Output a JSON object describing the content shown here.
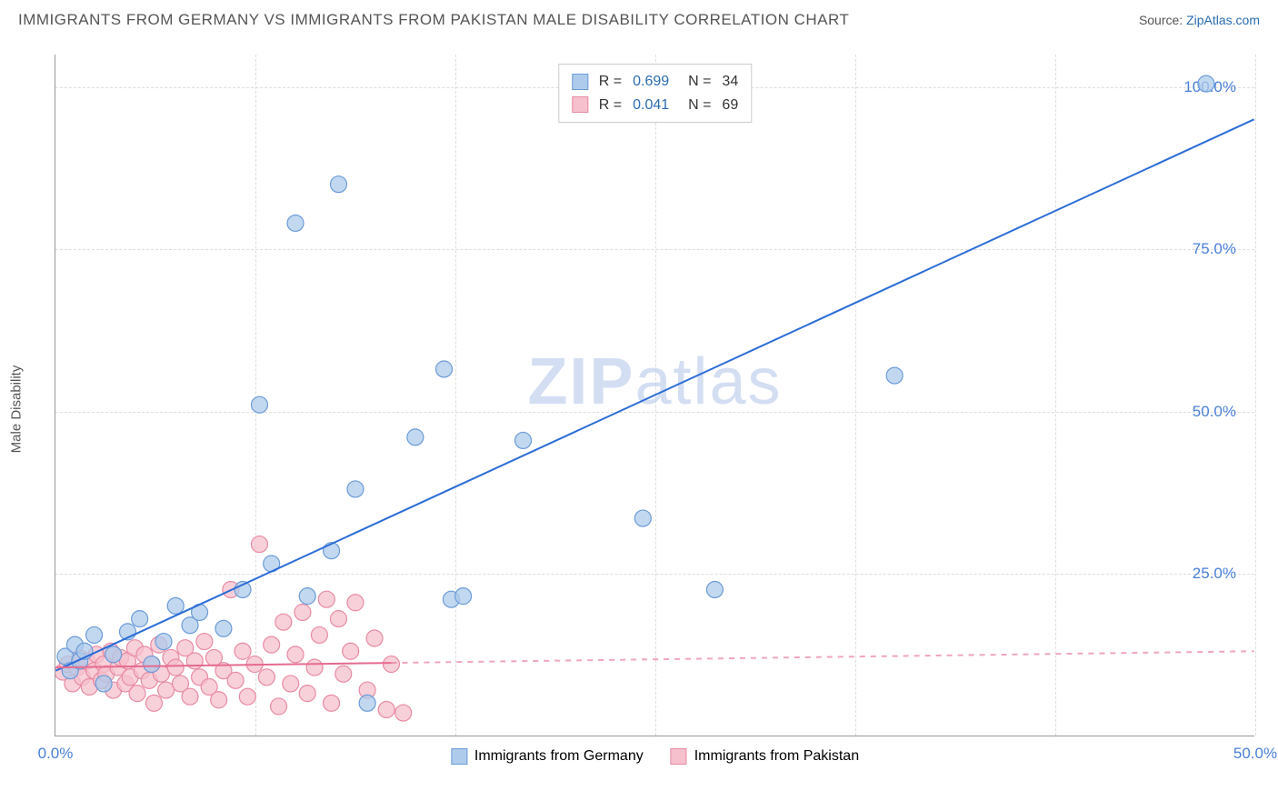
{
  "header": {
    "title": "IMMIGRANTS FROM GERMANY VS IMMIGRANTS FROM PAKISTAN MALE DISABILITY CORRELATION CHART",
    "source_label": "Source:",
    "source_link": "ZipAtlas.com"
  },
  "chart": {
    "type": "scatter",
    "watermark": "ZIPatlas",
    "ylabel": "Male Disability",
    "xlim": [
      0,
      50
    ],
    "ylim": [
      0,
      105
    ],
    "xticks": [
      0.0,
      50.0
    ],
    "xtick_labels": [
      "0.0%",
      "50.0%"
    ],
    "yticks": [
      25.0,
      50.0,
      75.0,
      100.0
    ],
    "ytick_labels": [
      "25.0%",
      "50.0%",
      "75.0%",
      "100.0%"
    ],
    "x_gridlines": [
      8.33,
      16.67,
      25.0,
      33.33,
      41.67,
      50.0
    ],
    "y_gridlines": [
      25.0,
      50.0,
      75.0,
      100.0
    ],
    "background_color": "#ffffff",
    "grid_color": "#dddddd",
    "axis_color": "#999999",
    "tick_label_color": "#4a7fd8",
    "series": [
      {
        "name": "Immigrants from Germany",
        "marker_fill": "#aecbeb",
        "marker_stroke": "#6b9bd8",
        "marker_radius": 9,
        "line_color": "#2b6cd6",
        "line_width": 2,
        "R": 0.699,
        "N": 34,
        "regression": {
          "x1": 0,
          "y1": 10,
          "x2": 50,
          "y2": 95,
          "solid_until_x": 50
        },
        "points": [
          [
            0.4,
            12.2
          ],
          [
            0.6,
            10.0
          ],
          [
            0.8,
            14.0
          ],
          [
            1.0,
            11.5
          ],
          [
            1.2,
            13.0
          ],
          [
            1.6,
            15.5
          ],
          [
            2.0,
            8.0
          ],
          [
            2.4,
            12.5
          ],
          [
            3.0,
            16.0
          ],
          [
            3.5,
            18.0
          ],
          [
            4.0,
            11.0
          ],
          [
            4.5,
            14.5
          ],
          [
            5.0,
            20.0
          ],
          [
            5.6,
            17.0
          ],
          [
            6.0,
            19.0
          ],
          [
            7.0,
            16.5
          ],
          [
            7.8,
            22.5
          ],
          [
            8.5,
            51.0
          ],
          [
            9.0,
            26.5
          ],
          [
            10.0,
            79.0
          ],
          [
            10.5,
            21.5
          ],
          [
            11.5,
            28.5
          ],
          [
            11.8,
            85.0
          ],
          [
            12.5,
            38.0
          ],
          [
            13.0,
            5.0
          ],
          [
            15.0,
            46.0
          ],
          [
            16.2,
            56.5
          ],
          [
            16.5,
            21.0
          ],
          [
            17.0,
            21.5
          ],
          [
            19.5,
            45.5
          ],
          [
            24.5,
            33.5
          ],
          [
            27.5,
            22.5
          ],
          [
            35.0,
            55.5
          ],
          [
            48.0,
            100.5
          ]
        ]
      },
      {
        "name": "Immigrants from Pakistan",
        "marker_fill": "#f6c0cc",
        "marker_stroke": "#e88ba4",
        "marker_radius": 9,
        "line_color": "#e56b8f",
        "line_width": 2,
        "R": 0.041,
        "N": 69,
        "regression": {
          "x1": 0,
          "y1": 10.5,
          "x2": 50,
          "y2": 13.0,
          "solid_until_x": 14
        },
        "points": [
          [
            0.3,
            9.8
          ],
          [
            0.5,
            11.0
          ],
          [
            0.7,
            8.0
          ],
          [
            0.9,
            10.5
          ],
          [
            1.0,
            12.0
          ],
          [
            1.1,
            9.0
          ],
          [
            1.3,
            11.5
          ],
          [
            1.4,
            7.5
          ],
          [
            1.6,
            10.0
          ],
          [
            1.7,
            12.5
          ],
          [
            1.9,
            8.5
          ],
          [
            2.0,
            11.0
          ],
          [
            2.1,
            9.5
          ],
          [
            2.3,
            13.0
          ],
          [
            2.4,
            7.0
          ],
          [
            2.6,
            10.5
          ],
          [
            2.7,
            12.0
          ],
          [
            2.9,
            8.0
          ],
          [
            3.0,
            11.5
          ],
          [
            3.1,
            9.0
          ],
          [
            3.3,
            13.5
          ],
          [
            3.4,
            6.5
          ],
          [
            3.6,
            10.0
          ],
          [
            3.7,
            12.5
          ],
          [
            3.9,
            8.5
          ],
          [
            4.0,
            11.0
          ],
          [
            4.1,
            5.0
          ],
          [
            4.3,
            14.0
          ],
          [
            4.4,
            9.5
          ],
          [
            4.6,
            7.0
          ],
          [
            4.8,
            12.0
          ],
          [
            5.0,
            10.5
          ],
          [
            5.2,
            8.0
          ],
          [
            5.4,
            13.5
          ],
          [
            5.6,
            6.0
          ],
          [
            5.8,
            11.5
          ],
          [
            6.0,
            9.0
          ],
          [
            6.2,
            14.5
          ],
          [
            6.4,
            7.5
          ],
          [
            6.6,
            12.0
          ],
          [
            6.8,
            5.5
          ],
          [
            7.0,
            10.0
          ],
          [
            7.3,
            22.5
          ],
          [
            7.5,
            8.5
          ],
          [
            7.8,
            13.0
          ],
          [
            8.0,
            6.0
          ],
          [
            8.3,
            11.0
          ],
          [
            8.5,
            29.5
          ],
          [
            8.8,
            9.0
          ],
          [
            9.0,
            14.0
          ],
          [
            9.3,
            4.5
          ],
          [
            9.5,
            17.5
          ],
          [
            9.8,
            8.0
          ],
          [
            10.0,
            12.5
          ],
          [
            10.3,
            19.0
          ],
          [
            10.5,
            6.5
          ],
          [
            10.8,
            10.5
          ],
          [
            11.0,
            15.5
          ],
          [
            11.3,
            21.0
          ],
          [
            11.5,
            5.0
          ],
          [
            11.8,
            18.0
          ],
          [
            12.0,
            9.5
          ],
          [
            12.3,
            13.0
          ],
          [
            12.5,
            20.5
          ],
          [
            13.0,
            7.0
          ],
          [
            13.3,
            15.0
          ],
          [
            13.8,
            4.0
          ],
          [
            14.0,
            11.0
          ],
          [
            14.5,
            3.5
          ]
        ]
      }
    ],
    "legend_bottom": [
      {
        "label": "Immigrants from Germany",
        "fill": "#aecbeb",
        "stroke": "#6b9bd8"
      },
      {
        "label": "Immigrants from Pakistan",
        "fill": "#f6c0cc",
        "stroke": "#e88ba4"
      }
    ]
  }
}
